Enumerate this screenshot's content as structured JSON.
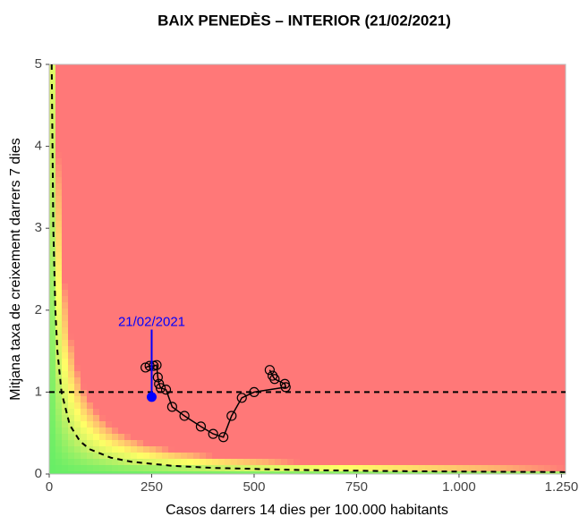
{
  "chart_data": {
    "type": "scatter",
    "title": "BAIX PENEDÈS – INTERIOR (21/02/2021)",
    "x_label": "Casos darrers 14 dies per 100.000 habitants",
    "y_label": "Mitjana taxa de creixement darrers 7 dies",
    "xlim": [
      0,
      1260
    ],
    "ylim": [
      0,
      5
    ],
    "xticks": [
      0,
      250,
      500,
      750,
      {
        "value": 1000,
        "label": "1.000"
      },
      {
        "value": 1250,
        "label": "1.250"
      }
    ],
    "yticks": [
      0,
      1,
      2,
      3,
      4,
      5
    ],
    "hline": 1,
    "curve": {
      "x": [
        6,
        10,
        15,
        20,
        30,
        50,
        75,
        100,
        150,
        200,
        300,
        400,
        600,
        800,
        1000,
        1260
      ],
      "values": [
        5,
        3,
        2,
        1.5,
        1,
        0.6,
        0.4,
        0.3,
        0.2,
        0.15,
        0.1,
        0.075,
        0.05,
        0.0375,
        0.03,
        0.0238
      ]
    },
    "series": [
      {
        "color": "#000000",
        "x": [
          538,
          545,
          550,
          575,
          577,
          500,
          470,
          445,
          425,
          400,
          370,
          330,
          300,
          285,
          272,
          268,
          265,
          262,
          255,
          245,
          235
        ],
        "values": [
          1.27,
          1.2,
          1.16,
          1.1,
          1.06,
          1.0,
          0.93,
          0.71,
          0.45,
          0.49,
          0.58,
          0.71,
          0.82,
          1.03,
          1.05,
          1.1,
          1.18,
          1.33,
          1.32,
          1.32,
          1.3
        ]
      }
    ],
    "highlight": {
      "x": 250,
      "value": 0.94,
      "label": "21/02/2021",
      "label_y": 1.85,
      "color": "#0000ff"
    }
  }
}
